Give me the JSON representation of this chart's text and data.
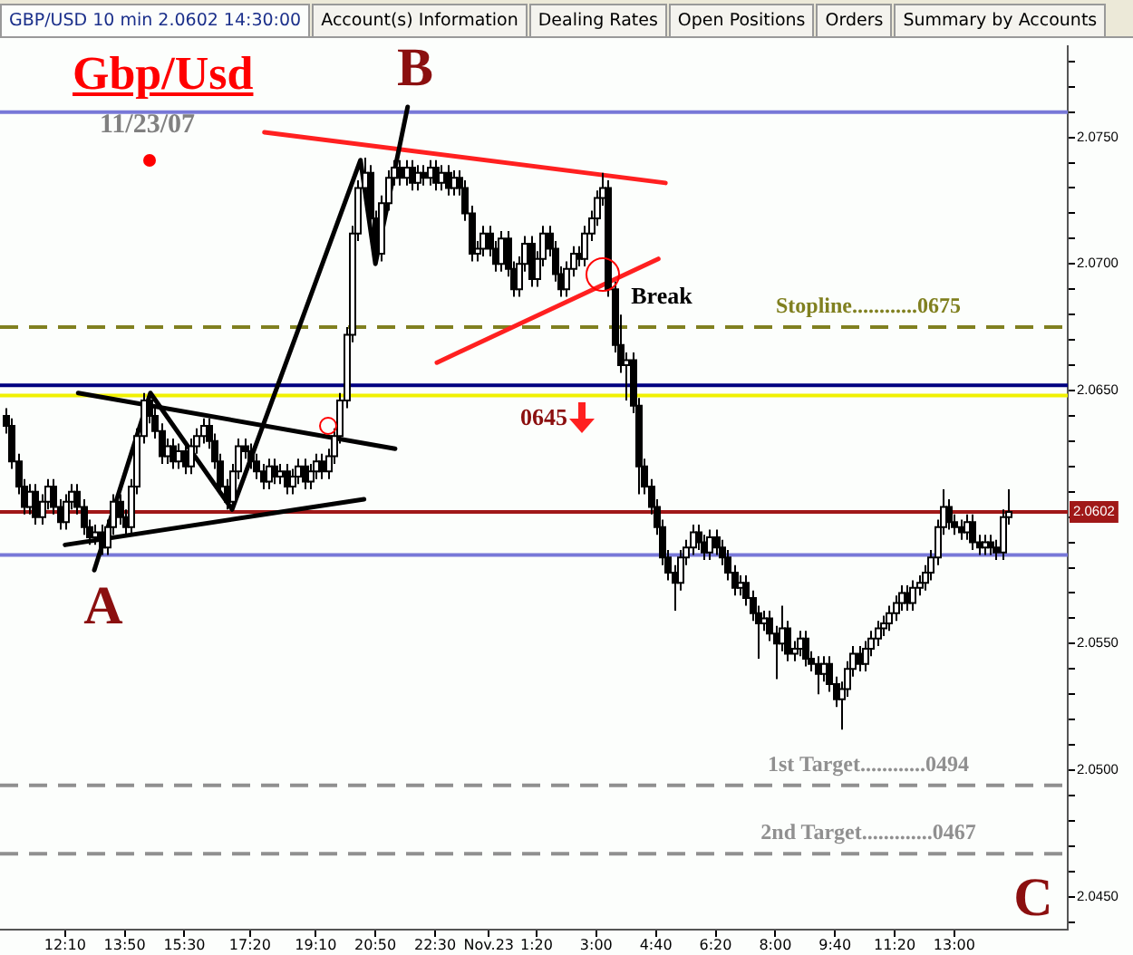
{
  "chart_data": {
    "type": "candlestick",
    "title": "Gbp/Usd",
    "subtitle": "11/23/07",
    "annotations": [
      "GBP/USD 10 min 2.0602 14:30:00",
      "Account(s) Information",
      "Dealing Rates",
      "Open Positions",
      "Orders",
      "Summary by Accounts",
      "A",
      "B",
      "C",
      "Break",
      "0645"
    ],
    "x": [
      "--11-22T10:30",
      "--11-22T10:40",
      "--11-22T10:50",
      "--11-22T11:00",
      "--11-22T11:10",
      "--11-22T11:20",
      "--11-22T11:30",
      "--11-22T11:40",
      "--11-22T11:50",
      "--11-22T12:00",
      "--11-22T12:10",
      "--11-22T12:20",
      "--11-22T12:30",
      "--11-22T12:40",
      "--11-22T12:50",
      "--11-22T13:00",
      "--11-22T13:10",
      "--11-22T13:20",
      "--11-22T13:30",
      "--11-22T13:40",
      "--11-22T13:50",
      "--11-22T14:00",
      "--11-22T14:10",
      "--11-22T14:20",
      "--11-22T14:30",
      "--11-22T14:40",
      "--11-22T14:50",
      "--11-22T15:00",
      "--11-22T15:10",
      "--11-22T15:20",
      "--11-22T15:30",
      "--11-22T15:40",
      "--11-22T15:50",
      "--11-22T16:00",
      "--11-22T16:10",
      "--11-22T16:20",
      "--11-22T16:30",
      "--11-22T16:40",
      "--11-22T16:50",
      "--11-22T17:00",
      "--11-22T17:10",
      "--11-22T17:20",
      "--11-22T17:30",
      "--11-22T17:40",
      "--11-22T17:50",
      "--11-22T18:00",
      "--11-22T18:10",
      "--11-22T18:20",
      "--11-22T18:30",
      "--11-22T18:40",
      "--11-22T18:50",
      "--11-22T19:00",
      "--11-22T19:10",
      "--11-22T19:20",
      "--11-22T19:30",
      "--11-22T19:40",
      "--11-22T19:50",
      "--11-22T20:00",
      "--11-22T20:10",
      "--11-22T20:20",
      "--11-22T20:30",
      "--11-22T20:40",
      "--11-22T20:50",
      "--11-22T21:00",
      "--11-22T21:10",
      "--11-22T21:20",
      "--11-22T21:30",
      "--11-22T21:40",
      "--11-22T21:50",
      "--11-22T22:00",
      "--11-22T22:10",
      "--11-22T22:20",
      "--11-22T22:30",
      "--11-22T22:40",
      "--11-22T22:50",
      "--11-22T23:00",
      "--11-22T23:10",
      "--11-22T23:20",
      "--11-22T23:30",
      "--11-22T23:40",
      "--11-22T23:50",
      "--11-23T00:00",
      "--11-23T00:10",
      "--11-23T00:20",
      "--11-23T00:30",
      "--11-23T00:40",
      "--11-23T00:50",
      "--11-23T01:00",
      "--11-23T01:10",
      "--11-23T01:20",
      "--11-23T01:30",
      "--11-23T01:40",
      "--11-23T01:50",
      "--11-23T02:00",
      "--11-23T02:10",
      "--11-23T02:20",
      "--11-23T02:30",
      "--11-23T02:40",
      "--11-23T02:50",
      "--11-23T03:00",
      "--11-23T03:10",
      "--11-23T03:20",
      "--11-23T03:30",
      "--11-23T03:40",
      "--11-23T03:50",
      "--11-23T04:00",
      "--11-23T04:10",
      "--11-23T04:20",
      "--11-23T04:30",
      "--11-23T04:40",
      "--11-23T04:50",
      "--11-23T05:00",
      "--11-23T05:10",
      "--11-23T05:20",
      "--11-23T05:30",
      "--11-23T05:40",
      "--11-23T05:50",
      "--11-23T06:00",
      "--11-23T06:10",
      "--11-23T06:20",
      "--11-23T06:30",
      "--11-23T06:40",
      "--11-23T06:50",
      "--11-23T07:00",
      "--11-23T07:10",
      "--11-23T07:20",
      "--11-23T07:30",
      "--11-23T07:40",
      "--11-23T07:50",
      "--11-23T08:00",
      "--11-23T08:10",
      "--11-23T08:20",
      "--11-23T08:30",
      "--11-23T08:40",
      "--11-23T08:50",
      "--11-23T09:00",
      "--11-23T09:10",
      "--11-23T09:20",
      "--11-23T09:30",
      "--11-23T09:40",
      "--11-23T09:50",
      "--11-23T10:00",
      "--11-23T10:10",
      "--11-23T10:20",
      "--11-23T10:30",
      "--11-23T10:40",
      "--11-23T10:50",
      "--11-23T11:00",
      "--11-23T11:10",
      "--11-23T11:20",
      "--11-23T11:30",
      "--11-23T11:40",
      "--11-23T11:50",
      "--11-23T12:00",
      "--11-23T12:10",
      "--11-23T12:20",
      "--11-23T12:30",
      "--11-23T12:40",
      "--11-23T12:50",
      "--11-23T13:00",
      "--11-23T13:10",
      "--11-23T13:20",
      "--11-23T13:30",
      "--11-23T13:40",
      "--11-23T13:50",
      "--11-23T14:00",
      "--11-23T14:10",
      "--11-23T14:20",
      "--11-23T14:30"
    ],
    "ohlc": [
      [
        2.064,
        2.0643,
        2.0633,
        2.0636
      ],
      [
        2.0636,
        2.0639,
        2.0619,
        2.0622
      ],
      [
        2.0622,
        2.0625,
        2.0609,
        2.0612
      ],
      [
        2.0612,
        2.0615,
        2.0601,
        2.0604
      ],
      [
        2.0604,
        2.0613,
        2.0601,
        2.061
      ],
      [
        2.061,
        2.0613,
        2.0597,
        2.06
      ],
      [
        2.06,
        2.0609,
        2.0597,
        2.0606
      ],
      [
        2.0606,
        2.0615,
        2.0603,
        2.0612
      ],
      [
        2.0612,
        2.0615,
        2.0601,
        2.0604
      ],
      [
        2.0604,
        2.0607,
        2.0595,
        2.0598
      ],
      [
        2.0598,
        2.0609,
        2.0595,
        2.0606
      ],
      [
        2.0606,
        2.0613,
        2.0603,
        2.061
      ],
      [
        2.061,
        2.0613,
        2.0601,
        2.0604
      ],
      [
        2.0604,
        2.0607,
        2.0593,
        2.0596
      ],
      [
        2.0596,
        2.0599,
        2.0589,
        2.0592
      ],
      [
        2.0592,
        2.0597,
        2.0589,
        2.0594
      ],
      [
        2.0594,
        2.0597,
        2.0585,
        2.0588
      ],
      [
        2.0588,
        2.0599,
        2.0585,
        2.0596
      ],
      [
        2.0596,
        2.0609,
        2.0593,
        2.0606
      ],
      [
        2.0606,
        2.0609,
        2.0597,
        2.06
      ],
      [
        2.06,
        2.0603,
        2.0593,
        2.0596
      ],
      [
        2.0596,
        2.0615,
        2.0593,
        2.0612
      ],
      [
        2.0612,
        2.0635,
        2.0609,
        2.0632
      ],
      [
        2.0632,
        2.0649,
        2.0629,
        2.0646
      ],
      [
        2.0646,
        2.0649,
        2.0637,
        2.064
      ],
      [
        2.064,
        2.0643,
        2.0631,
        2.0634
      ],
      [
        2.0634,
        2.0637,
        2.0621,
        2.0624
      ],
      [
        2.0624,
        2.0631,
        2.0621,
        2.0628
      ],
      [
        2.0628,
        2.0631,
        2.0619,
        2.0622
      ],
      [
        2.0622,
        2.0629,
        2.0619,
        2.0626
      ],
      [
        2.0626,
        2.0629,
        2.0617,
        2.062
      ],
      [
        2.062,
        2.0631,
        2.0617,
        2.0628
      ],
      [
        2.0628,
        2.0635,
        2.0625,
        2.0632
      ],
      [
        2.0632,
        2.0639,
        2.0629,
        2.0636
      ],
      [
        2.0636,
        2.0639,
        2.0627,
        2.063
      ],
      [
        2.063,
        2.0633,
        2.0619,
        2.0622
      ],
      [
        2.0622,
        2.0625,
        2.0609,
        2.0612
      ],
      [
        2.0612,
        2.0615,
        2.0603,
        2.0606
      ],
      [
        2.0606,
        2.0621,
        2.0603,
        2.0618
      ],
      [
        2.0618,
        2.0631,
        2.0615,
        2.0628
      ],
      [
        2.0628,
        2.0631,
        2.0623,
        2.0626
      ],
      [
        2.0626,
        2.0629,
        2.0619,
        2.0622
      ],
      [
        2.0622,
        2.0625,
        2.0615,
        2.0618
      ],
      [
        2.0618,
        2.0621,
        2.0611,
        2.0614
      ],
      [
        2.0614,
        2.0623,
        2.0611,
        2.062
      ],
      [
        2.062,
        2.0623,
        2.0613,
        2.0616
      ],
      [
        2.0616,
        2.0621,
        2.0613,
        2.0618
      ],
      [
        2.0618,
        2.0621,
        2.0609,
        2.0612
      ],
      [
        2.0612,
        2.0619,
        2.0609,
        2.0616
      ],
      [
        2.0616,
        2.0623,
        2.0613,
        2.062
      ],
      [
        2.062,
        2.0623,
        2.0611,
        2.0614
      ],
      [
        2.0614,
        2.0621,
        2.0611,
        2.0618
      ],
      [
        2.0618,
        2.0625,
        2.0615,
        2.0622
      ],
      [
        2.0622,
        2.0625,
        2.0615,
        2.0618
      ],
      [
        2.0618,
        2.0627,
        2.0615,
        2.0624
      ],
      [
        2.0624,
        2.0635,
        2.0621,
        2.0632
      ],
      [
        2.0632,
        2.0649,
        2.0629,
        2.0646
      ],
      [
        2.0646,
        2.0675,
        2.0643,
        2.0672
      ],
      [
        2.0672,
        2.0715,
        2.0669,
        2.0712
      ],
      [
        2.0712,
        2.0733,
        2.0709,
        2.073
      ],
      [
        2.073,
        2.0742,
        2.0727,
        2.0736
      ],
      [
        2.0736,
        2.0739,
        2.0715,
        2.0718
      ],
      [
        2.0718,
        2.0721,
        2.07,
        2.0704
      ],
      [
        2.0704,
        2.0727,
        2.0701,
        2.0724
      ],
      [
        2.0724,
        2.0737,
        2.0721,
        2.0734
      ],
      [
        2.0734,
        2.0741,
        2.0731,
        2.0738
      ],
      [
        2.0738,
        2.0741,
        2.0731,
        2.0734
      ],
      [
        2.0734,
        2.0741,
        2.0731,
        2.0738
      ],
      [
        2.0738,
        2.0741,
        2.0729,
        2.0732
      ],
      [
        2.0732,
        2.0739,
        2.0729,
        2.0736
      ],
      [
        2.0736,
        2.0739,
        2.0731,
        2.0734
      ],
      [
        2.0734,
        2.0741,
        2.0731,
        2.0738
      ],
      [
        2.0738,
        2.0741,
        2.0729,
        2.0732
      ],
      [
        2.0732,
        2.0739,
        2.0729,
        2.0736
      ],
      [
        2.0736,
        2.0739,
        2.0727,
        2.073
      ],
      [
        2.073,
        2.0737,
        2.0727,
        2.0734
      ],
      [
        2.0734,
        2.0737,
        2.0727,
        2.073
      ],
      [
        2.073,
        2.0733,
        2.0717,
        2.072
      ],
      [
        2.072,
        2.0723,
        2.0701,
        2.0704
      ],
      [
        2.0704,
        2.0709,
        2.0701,
        2.0706
      ],
      [
        2.0706,
        2.0715,
        2.0703,
        2.0712
      ],
      [
        2.0712,
        2.0715,
        2.0703,
        2.0706
      ],
      [
        2.0706,
        2.0709,
        2.0697,
        2.07
      ],
      [
        2.07,
        2.0713,
        2.0697,
        2.071
      ],
      [
        2.071,
        2.0713,
        2.0695,
        2.0698
      ],
      [
        2.0698,
        2.0701,
        2.0687,
        2.069
      ],
      [
        2.069,
        2.0703,
        2.0687,
        2.07
      ],
      [
        2.07,
        2.0711,
        2.0697,
        2.0708
      ],
      [
        2.0708,
        2.0711,
        2.0691,
        2.0694
      ],
      [
        2.0694,
        2.0705,
        2.0691,
        2.0702
      ],
      [
        2.0702,
        2.0715,
        2.0699,
        2.0712
      ],
      [
        2.0712,
        2.0715,
        2.0703,
        2.0706
      ],
      [
        2.0706,
        2.0709,
        2.0693,
        2.0696
      ],
      [
        2.0696,
        2.0699,
        2.0687,
        2.069
      ],
      [
        2.069,
        2.0701,
        2.0687,
        2.0698
      ],
      [
        2.0698,
        2.0707,
        2.0695,
        2.0704
      ],
      [
        2.0704,
        2.0707,
        2.0699,
        2.0702
      ],
      [
        2.0702,
        2.0715,
        2.0699,
        2.0712
      ],
      [
        2.0712,
        2.0721,
        2.0709,
        2.0718
      ],
      [
        2.0718,
        2.0729,
        2.0715,
        2.0726
      ],
      [
        2.0726,
        2.0736,
        2.0723,
        2.073
      ],
      [
        2.073,
        2.0733,
        2.0687,
        2.069
      ],
      [
        2.069,
        2.0693,
        2.0665,
        2.0668
      ],
      [
        2.0668,
        2.068,
        2.0657,
        2.066
      ],
      [
        2.066,
        2.0665,
        2.0646,
        2.0662
      ],
      [
        2.0662,
        2.0665,
        2.0641,
        2.0644
      ],
      [
        2.0644,
        2.0647,
        2.0609,
        2.062
      ],
      [
        2.062,
        2.0623,
        2.0609,
        2.0612
      ],
      [
        2.0612,
        2.0615,
        2.0601,
        2.0604
      ],
      [
        2.0604,
        2.0607,
        2.0593,
        2.0596
      ],
      [
        2.0596,
        2.0599,
        2.0581,
        2.0584
      ],
      [
        2.0584,
        2.0587,
        2.0575,
        2.0578
      ],
      [
        2.0578,
        2.0581,
        2.0563,
        2.0574
      ],
      [
        2.0574,
        2.0587,
        2.0571,
        2.0584
      ],
      [
        2.0584,
        2.0591,
        2.0581,
        2.0588
      ],
      [
        2.0588,
        2.0597,
        2.0585,
        2.0594
      ],
      [
        2.0594,
        2.0597,
        2.0587,
        2.059
      ],
      [
        2.059,
        2.0593,
        2.0583,
        2.0586
      ],
      [
        2.0586,
        2.0595,
        2.0583,
        2.0592
      ],
      [
        2.0592,
        2.0595,
        2.0585,
        2.0588
      ],
      [
        2.0588,
        2.0591,
        2.0581,
        2.0584
      ],
      [
        2.0584,
        2.0587,
        2.0575,
        2.0578
      ],
      [
        2.0578,
        2.0581,
        2.0569,
        2.0572
      ],
      [
        2.0572,
        2.0577,
        2.0569,
        2.0574
      ],
      [
        2.0574,
        2.0577,
        2.0565,
        2.0568
      ],
      [
        2.0568,
        2.0571,
        2.0559,
        2.0562
      ],
      [
        2.0562,
        2.0565,
        2.0544,
        2.0558
      ],
      [
        2.0558,
        2.0563,
        2.0555,
        2.056
      ],
      [
        2.056,
        2.0563,
        2.0551,
        2.0554
      ],
      [
        2.0554,
        2.0557,
        2.0536,
        2.055
      ],
      [
        2.055,
        2.0565,
        2.0547,
        2.0556
      ],
      [
        2.0556,
        2.0559,
        2.0543,
        2.0546
      ],
      [
        2.0546,
        2.0551,
        2.0543,
        2.0548
      ],
      [
        2.0548,
        2.0555,
        2.0545,
        2.0552
      ],
      [
        2.0552,
        2.0555,
        2.0541,
        2.0544
      ],
      [
        2.0544,
        2.0547,
        2.0539,
        2.0542
      ],
      [
        2.0542,
        2.0545,
        2.053,
        2.0538
      ],
      [
        2.0538,
        2.0545,
        2.0535,
        2.0542
      ],
      [
        2.0542,
        2.0545,
        2.0531,
        2.0534
      ],
      [
        2.0534,
        2.0537,
        2.0525,
        2.0528
      ],
      [
        2.0528,
        2.0535,
        2.0516,
        2.0532
      ],
      [
        2.0532,
        2.0543,
        2.0529,
        2.054
      ],
      [
        2.054,
        2.0549,
        2.0537,
        2.0546
      ],
      [
        2.0546,
        2.0549,
        2.0539,
        2.0542
      ],
      [
        2.0542,
        2.0551,
        2.0539,
        2.0548
      ],
      [
        2.0548,
        2.0555,
        2.0545,
        2.0552
      ],
      [
        2.0552,
        2.0559,
        2.0549,
        2.0556
      ],
      [
        2.0556,
        2.0561,
        2.0553,
        2.0558
      ],
      [
        2.0558,
        2.0565,
        2.0555,
        2.0562
      ],
      [
        2.0562,
        2.0569,
        2.0559,
        2.0566
      ],
      [
        2.0566,
        2.0573,
        2.0563,
        2.057
      ],
      [
        2.057,
        2.0573,
        2.0563,
        2.0566
      ],
      [
        2.0566,
        2.0575,
        2.0563,
        2.0572
      ],
      [
        2.0572,
        2.0577,
        2.0569,
        2.0574
      ],
      [
        2.0574,
        2.0581,
        2.0571,
        2.0578
      ],
      [
        2.0578,
        2.0587,
        2.0575,
        2.0584
      ],
      [
        2.0584,
        2.0599,
        2.0581,
        2.0596
      ],
      [
        2.0596,
        2.0611,
        2.0593,
        2.0604
      ],
      [
        2.0604,
        2.0607,
        2.0595,
        2.0598
      ],
      [
        2.0598,
        2.0601,
        2.0593,
        2.0596
      ],
      [
        2.0596,
        2.0599,
        2.0591,
        2.0594
      ],
      [
        2.0594,
        2.0601,
        2.0591,
        2.0598
      ],
      [
        2.0598,
        2.0601,
        2.0587,
        2.059
      ],
      [
        2.059,
        2.0593,
        2.0585,
        2.0588
      ],
      [
        2.0588,
        2.0593,
        2.0585,
        2.059
      ],
      [
        2.059,
        2.0593,
        2.0585,
        2.0588
      ],
      [
        2.0588,
        2.0591,
        2.0583,
        2.0586
      ],
      [
        2.0586,
        2.0603,
        2.0583,
        2.06
      ],
      [
        2.06,
        2.0611,
        2.0597,
        2.0602
      ]
    ],
    "colors": [
      "#000000",
      "#000000",
      "#000000",
      "#000000",
      "#ffffff",
      "#000000",
      "#ffffff",
      "#ffffff",
      "#000000",
      "#000000",
      "#ffffff",
      "#ffffff",
      "#000000",
      "#000000",
      "#000000",
      "#ffffff",
      "#000000",
      "#ffffff",
      "#ffffff",
      "#000000",
      "#000000",
      "#ffffff",
      "#ffffff",
      "#ffffff",
      "#000000",
      "#000000",
      "#000000",
      "#ffffff",
      "#000000",
      "#ffffff",
      "#000000",
      "#ffffff",
      "#ffffff",
      "#ffffff",
      "#000000",
      "#000000",
      "#000000",
      "#000000",
      "#ffffff",
      "#ffffff",
      "#000000",
      "#000000",
      "#000000",
      "#000000",
      "#ffffff",
      "#000000",
      "#ffffff",
      "#000000",
      "#ffffff",
      "#ffffff",
      "#000000",
      "#ffffff",
      "#ffffff",
      "#000000",
      "#ffffff",
      "#ffffff",
      "#ffffff",
      "#ffffff",
      "#ffffff",
      "#ffffff",
      "#ffffff",
      "#000000",
      "#000000",
      "#ffffff",
      "#ffffff",
      "#ffffff",
      "#000000",
      "#ffffff",
      "#000000",
      "#ffffff",
      "#000000",
      "#ffffff",
      "#000000",
      "#ffffff",
      "#000000",
      "#ffffff",
      "#000000",
      "#000000",
      "#000000",
      "#ffffff",
      "#ffffff",
      "#000000",
      "#000000",
      "#ffffff",
      "#000000",
      "#000000",
      "#ffffff",
      "#ffffff",
      "#000000",
      "#ffffff",
      "#ffffff",
      "#000000",
      "#000000",
      "#000000",
      "#ffffff",
      "#ffffff",
      "#000000",
      "#ffffff",
      "#ffffff",
      "#ffffff",
      "#ffffff",
      "#000000",
      "#000000",
      "#000000",
      "#ffffff",
      "#000000",
      "#000000",
      "#000000",
      "#000000",
      "#000000",
      "#000000",
      "#000000",
      "#000000",
      "#ffffff",
      "#ffffff",
      "#ffffff",
      "#000000",
      "#000000",
      "#ffffff",
      "#000000",
      "#000000",
      "#000000",
      "#000000",
      "#ffffff",
      "#000000",
      "#000000",
      "#000000",
      "#ffffff",
      "#000000",
      "#000000",
      "#ffffff",
      "#000000",
      "#ffffff",
      "#ffffff",
      "#000000",
      "#000000",
      "#000000",
      "#ffffff",
      "#000000",
      "#000000",
      "#ffffff",
      "#ffffff",
      "#ffffff",
      "#000000",
      "#ffffff",
      "#ffffff",
      "#ffffff",
      "#ffffff",
      "#ffffff",
      "#ffffff",
      "#ffffff",
      "#000000",
      "#ffffff",
      "#ffffff",
      "#ffffff",
      "#ffffff",
      "#ffffff",
      "#ffffff",
      "#000000",
      "#000000",
      "#000000",
      "#ffffff",
      "#000000",
      "#000000",
      "#ffffff",
      "#000000",
      "#000000",
      "#ffffff",
      "#ffffff"
    ],
    "series": [
      {
        "type": "line",
        "color": "#000000",
        "x": [
          "--11-22T12:59",
          "--11-22T14:33",
          "--11-22T16:50",
          "--11-22T20:25",
          "--11-22T20:50",
          "--11-22T21:44"
        ],
        "values": [
          2.0579,
          2.0649,
          2.0603,
          2.0741,
          2.07,
          2.0762
        ]
      },
      {
        "type": "line",
        "color": "#000000",
        "x": [
          "--11-22T12:32",
          "--11-22T21:23"
        ],
        "values": [
          2.0649,
          2.0627
        ]
      },
      {
        "type": "line",
        "color": "#000000",
        "x": [
          "--11-22T12:10",
          "--11-22T20:31"
        ],
        "values": [
          2.0589,
          2.0607
        ]
      },
      {
        "type": "line",
        "color": "#ff2020",
        "x": [
          "--11-22T17:44",
          "--11-23T04:56"
        ],
        "values": [
          2.0752,
          2.0732
        ]
      },
      {
        "type": "line",
        "color": "#ff2020",
        "x": [
          "--11-22T22:33",
          "--11-23T04:44"
        ],
        "values": [
          2.0661,
          2.0702
        ]
      }
    ],
    "ref_lines": [
      {
        "axis": "y",
        "value": 2.076,
        "color": "#7878d8"
      },
      {
        "axis": "y",
        "value": 2.0585,
        "color": "#7878d8"
      },
      {
        "axis": "y",
        "value": 2.0602,
        "label": "2.0602",
        "color": "#a01818"
      },
      {
        "axis": "y",
        "value": 2.0652,
        "color": "#000080"
      },
      {
        "axis": "y",
        "value": 2.0648,
        "color": "#f0f000"
      },
      {
        "axis": "y",
        "value": 2.0675,
        "label": "Stopline............0675",
        "color": "#808020",
        "line_style": "dashed"
      },
      {
        "axis": "y",
        "value": 2.0494,
        "label": "1st Target............0494",
        "color": "#909090",
        "line_style": "dashed"
      },
      {
        "axis": "y",
        "value": 2.0467,
        "label": "2nd Target.............0467",
        "color": "#909090",
        "line_style": "dashed"
      }
    ],
    "xlim": [
      "--11-22T10:21",
      "--11-23T16:10"
    ],
    "xticks": [
      {
        "value": "--11-22T12:10",
        "label": "12:10"
      },
      {
        "value": "--11-22T13:50",
        "label": "13:50"
      },
      {
        "value": "--11-22T15:30",
        "label": "15:30"
      },
      {
        "value": "--11-22T17:20",
        "label": "17:20"
      },
      {
        "value": "--11-22T19:10",
        "label": "19:10"
      },
      {
        "value": "--11-22T20:50",
        "label": "20:50"
      },
      {
        "value": "--11-22T22:30",
        "label": "22:30"
      },
      {
        "value": "--11-23T00:00",
        "label": "Nov.23"
      },
      {
        "value": "--11-23T01:20",
        "label": "1:20"
      },
      {
        "value": "--11-23T03:00",
        "label": "3:00"
      },
      {
        "value": "--11-23T04:40",
        "label": "4:40"
      },
      {
        "value": "--11-23T06:20",
        "label": "6:20"
      },
      {
        "value": "--11-23T08:00",
        "label": "8:00"
      },
      {
        "value": "--11-23T09:40",
        "label": "9:40"
      },
      {
        "value": "--11-23T11:20",
        "label": "11:20"
      },
      {
        "value": "--11-23T13:00",
        "label": "13:00"
      }
    ],
    "ylim": [
      2.0437,
      2.0786
    ],
    "yticks": [
      {
        "value": 2.044,
        "label": null
      },
      {
        "value": 2.045,
        "label": "2.0450"
      },
      {
        "value": 2.046,
        "label": null
      },
      {
        "value": 2.047,
        "label": null
      },
      {
        "value": 2.048,
        "label": null
      },
      {
        "value": 2.049,
        "label": null
      },
      {
        "value": 2.05,
        "label": "2.0500"
      },
      {
        "value": 2.051,
        "label": null
      },
      {
        "value": 2.052,
        "label": null
      },
      {
        "value": 2.053,
        "label": null
      },
      {
        "value": 2.054,
        "label": null
      },
      {
        "value": 2.055,
        "label": "2.0550"
      },
      {
        "value": 2.056,
        "label": null
      },
      {
        "value": 2.057,
        "label": null
      },
      {
        "value": 2.058,
        "label": null
      },
      {
        "value": 2.059,
        "label": null
      },
      {
        "value": 2.06,
        "label": null
      },
      {
        "value": 2.061,
        "label": null
      },
      {
        "value": 2.062,
        "label": null
      },
      {
        "value": 2.063,
        "label": null
      },
      {
        "value": 2.064,
        "label": null
      },
      {
        "value": 2.065,
        "label": "2.0650"
      },
      {
        "value": 2.066,
        "label": null
      },
      {
        "value": 2.067,
        "label": null
      },
      {
        "value": 2.068,
        "label": null
      },
      {
        "value": 2.069,
        "label": null
      },
      {
        "value": 2.07,
        "label": "2.0700"
      },
      {
        "value": 2.071,
        "label": null
      },
      {
        "value": 2.072,
        "label": null
      },
      {
        "value": 2.073,
        "label": null
      },
      {
        "value": 2.074,
        "label": null
      },
      {
        "value": 2.075,
        "label": "2.0750"
      },
      {
        "value": 2.076,
        "label": null
      },
      {
        "value": 2.077,
        "label": null
      },
      {
        "value": 2.078,
        "label": null
      }
    ],
    "grid": false,
    "legend": false
  }
}
